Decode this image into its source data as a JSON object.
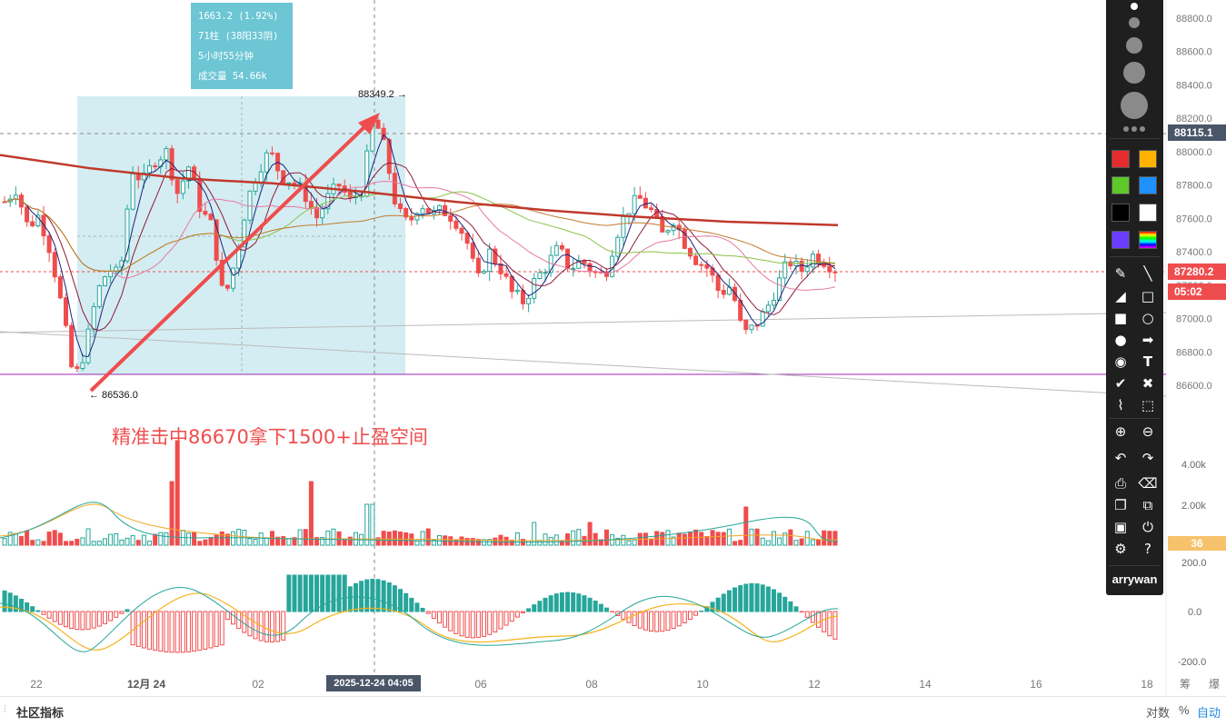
{
  "chart_data": [
    {
      "type": "candlestick",
      "description_series": "BTC price K-line with moving averages",
      "price_axis": {
        "ticks": [
          88800.0,
          88600.0,
          88400.0,
          88200.0,
          88000.0,
          87800.0,
          87600.0,
          87400.0,
          87200.0,
          87000.0,
          86800.0,
          86600.0
        ]
      },
      "time_axis": {
        "ticks": [
          "22",
          "12月 24",
          "02",
          "06",
          "08",
          "10",
          "12",
          "14",
          "16",
          "18",
          "筹",
          "爆"
        ]
      },
      "current_price": "87280.2",
      "countdown": "05:02",
      "crosshair_price": "88115.1",
      "crosshair_time": "2025-12-24 04:05",
      "high_label": "88349.2",
      "low_label": "86536.0",
      "close_path": [
        87700,
        87780,
        87550,
        87620,
        87400,
        87050,
        86620,
        86820,
        87150,
        87300,
        87250,
        87900,
        87820,
        87950,
        88000,
        87750,
        87920,
        87650,
        87550,
        87100,
        87350,
        87700,
        87900,
        88000,
        87850,
        87820,
        87750,
        87600,
        87720,
        87800,
        87700,
        87780,
        88220,
        88000,
        87650,
        87560,
        87700,
        87620,
        87650,
        87600,
        87480,
        87220,
        87400,
        87300,
        87150,
        87100,
        87230,
        87320,
        87420,
        87300,
        87350,
        87280,
        87250,
        87500,
        87650,
        87720,
        87650,
        87500,
        87600,
        87450,
        87350,
        87300,
        87150,
        87200,
        86900,
        86950,
        87050,
        87200,
        87350,
        87280,
        87380,
        87350,
        87300
      ]
    },
    {
      "type": "bar",
      "description_series": "Volume",
      "y_ticks": [
        "4.00k",
        "2.00k"
      ],
      "current_value": "36"
    },
    {
      "type": "bar",
      "description_series": "MACD",
      "y_ticks": [
        "200.0",
        "0.0",
        "-200.0"
      ]
    }
  ],
  "selection_info": {
    "line1": "1663.2 (1.92%)",
    "line2": "71柱 (38阳33阴)",
    "line3": "5小时55分钟",
    "line4": "成交量 54.66k"
  },
  "annotation": "精准击中86670拿下1500+止盈空间",
  "toolbar": {
    "username": "arrywan"
  },
  "bottom": {
    "left_label": "社区指标",
    "right_items": [
      "对数",
      "%",
      "自动"
    ]
  },
  "colors": {
    "up": "#26a69a",
    "down": "#ef4d4d",
    "ma_long": "#c0392b",
    "selection": "#cdeaf0",
    "accent_blue": "#1e88e5"
  }
}
